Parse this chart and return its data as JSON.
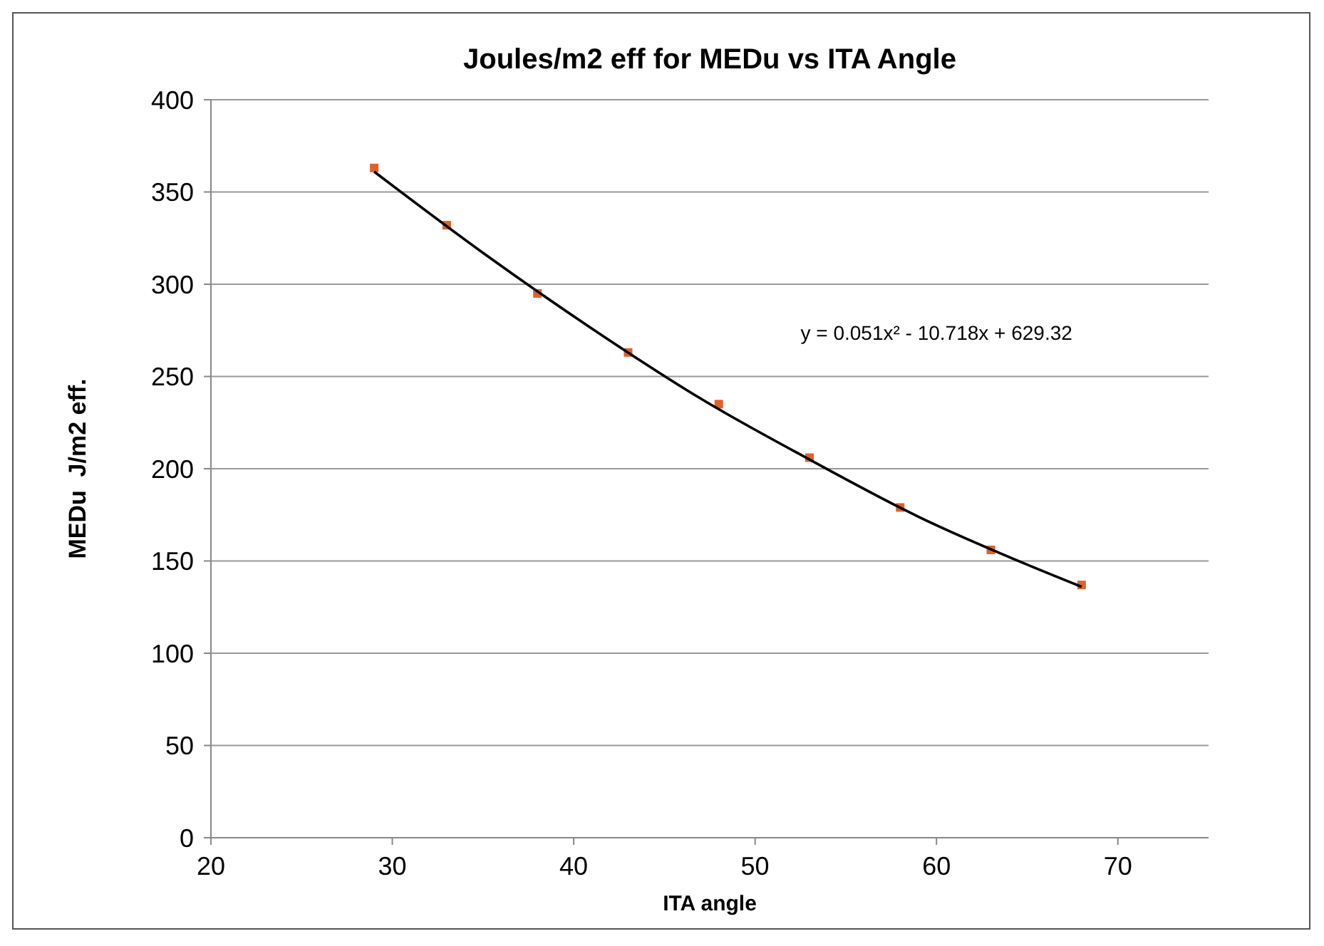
{
  "chart_data": {
    "type": "scatter",
    "title": "Joules/m2 eff for MEDu vs ITA Angle",
    "xlabel": "ITA angle",
    "ylabel": "MEDu  J/m2 eff.",
    "xlim": [
      20,
      75
    ],
    "xticks": [
      20,
      30,
      40,
      50,
      60,
      70
    ],
    "ylim": [
      0,
      400
    ],
    "yticks": [
      0,
      50,
      100,
      150,
      200,
      250,
      300,
      350,
      400
    ],
    "grid": "y",
    "annotations": [
      "y = 0.051x² - 10.718x + 629.32"
    ],
    "series": [
      {
        "marker": "square",
        "color": "#e0622a",
        "x": [
          29,
          33,
          38,
          43,
          48,
          53,
          58,
          63,
          68
        ],
        "values": [
          363,
          332,
          295,
          263,
          235,
          206,
          179,
          156,
          137
        ]
      },
      {
        "type": "line",
        "marker": "none",
        "color": "#000000",
        "x": [
          29,
          35,
          41,
          47,
          53,
          59,
          65,
          68
        ],
        "values": [
          361,
          317,
          276,
          238,
          205,
          174,
          148,
          136
        ]
      }
    ]
  }
}
